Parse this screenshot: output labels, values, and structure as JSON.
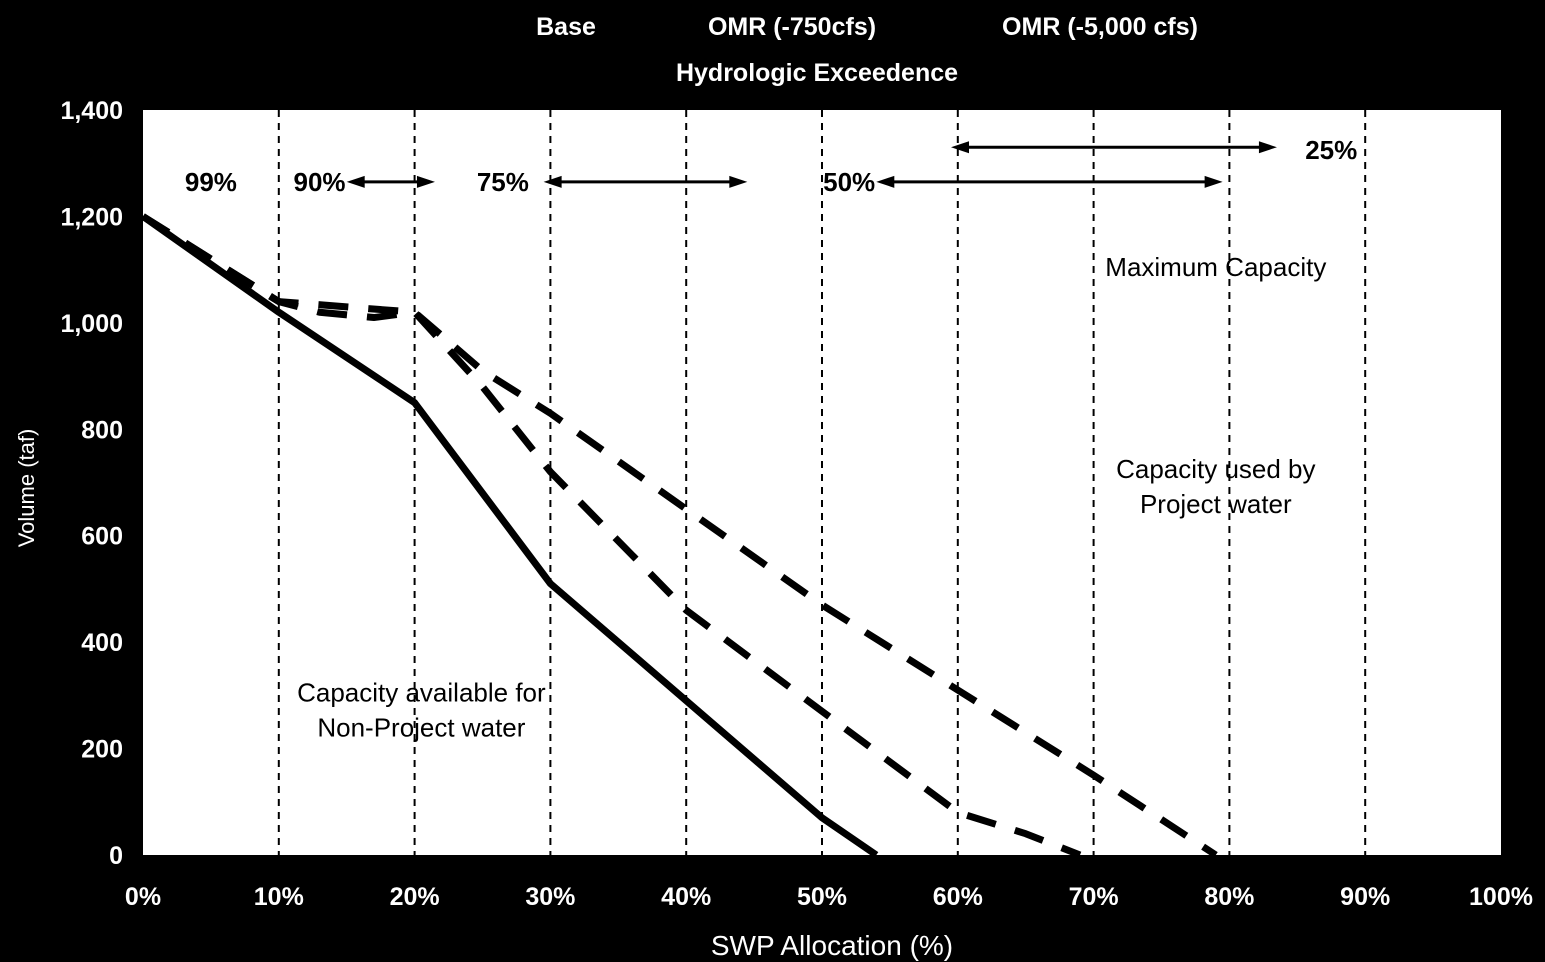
{
  "chart_data": {
    "type": "line",
    "xlabel": "SWP Allocation (%)",
    "ylabel": "Volume (taf)",
    "xlim": [
      0,
      100
    ],
    "ylim": [
      0,
      1400
    ],
    "x_ticks": [
      0,
      10,
      20,
      30,
      40,
      50,
      60,
      70,
      80,
      90,
      100
    ],
    "x_tick_labels": [
      "0%",
      "10%",
      "20%",
      "30%",
      "40%",
      "50%",
      "60%",
      "70%",
      "80%",
      "90%",
      "100%"
    ],
    "y_ticks": [
      0,
      200,
      400,
      600,
      800,
      1000,
      1200,
      1400
    ],
    "y_tick_labels": [
      "0",
      "200",
      "400",
      "600",
      "800",
      "1,000",
      "1,200",
      "1,400"
    ],
    "grid": "vertical dashed",
    "legend_top": [
      "Base",
      "OMR (-750cfs)",
      "OMR (-5,000 cfs)"
    ],
    "legend_subtitle": "Hydrologic Exceedence",
    "series": [
      {
        "style": "solid",
        "x": [
          0,
          10,
          20,
          25,
          30,
          40,
          50,
          54
        ],
        "y": [
          1200,
          1020,
          850,
          680,
          510,
          290,
          70,
          0
        ]
      },
      {
        "style": "dashed",
        "x": [
          0,
          10,
          13,
          17,
          20,
          25,
          30,
          40,
          50,
          60,
          65,
          69
        ],
        "y": [
          1200,
          1040,
          1020,
          1010,
          1020,
          880,
          720,
          460,
          270,
          80,
          40,
          0
        ]
      },
      {
        "style": "dashed",
        "x": [
          0,
          10,
          20,
          25,
          30,
          40,
          50,
          60,
          70,
          79
        ],
        "y": [
          1200,
          1040,
          1020,
          910,
          830,
          650,
          470,
          310,
          150,
          0
        ]
      }
    ],
    "exceedence_labels": [
      {
        "text": "99%",
        "x": 5,
        "y": 1265
      },
      {
        "text": "90%",
        "x": 13,
        "y": 1265
      },
      {
        "text": "75%",
        "x": 26.5,
        "y": 1265
      },
      {
        "text": "50%",
        "x": 52,
        "y": 1265
      },
      {
        "text": "25%",
        "x": 87.5,
        "y": 1325
      }
    ],
    "exceedence_arrows": [
      {
        "x1": 15,
        "x2": 21.5,
        "y": 1265
      },
      {
        "x1": 29.5,
        "x2": 44.5,
        "y": 1265
      },
      {
        "x1": 54,
        "x2": 79.5,
        "y": 1265
      },
      {
        "x1": 59.5,
        "x2": 83.5,
        "y": 1330
      }
    ],
    "annotations": [
      {
        "lines": [
          "Maximum Capacity"
        ],
        "x": 79,
        "y": 1105
      },
      {
        "lines": [
          "Capacity used by",
          "Project water"
        ],
        "x": 79,
        "y": 725
      },
      {
        "lines": [
          "Capacity available for",
          "Non-Project water"
        ],
        "x": 20.5,
        "y": 305
      }
    ],
    "colors": {
      "background": "#000000",
      "plot_area": "#ffffff",
      "lines": "#000000",
      "text": "#ffffff"
    }
  }
}
